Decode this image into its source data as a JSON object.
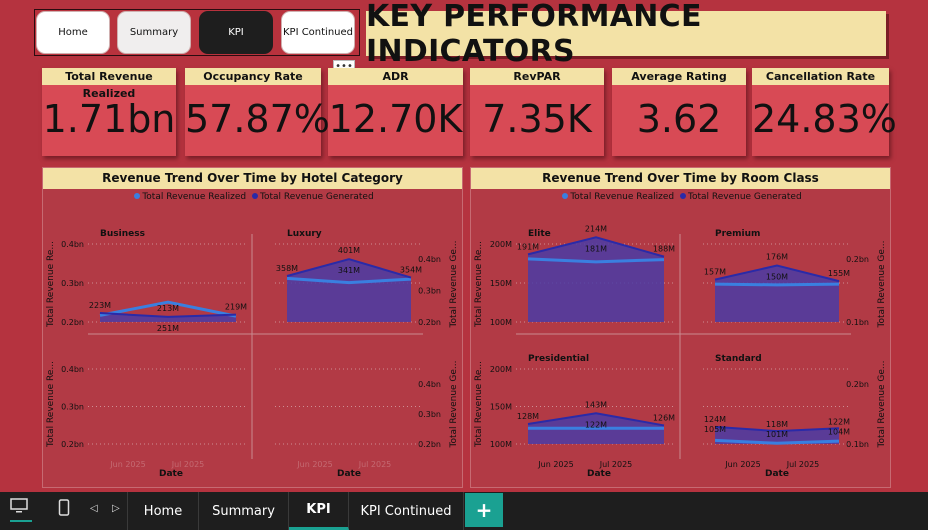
{
  "nav": {
    "buttons": [
      "Home",
      "Summary",
      "KPI",
      "KPI Continued"
    ]
  },
  "header": {
    "title": "KEY PERFORMANCE INDICATORS"
  },
  "kpis": [
    {
      "label": "Total Revenue Realized",
      "value": "1.71bn"
    },
    {
      "label": "Occupancy Rate",
      "value": "57.87%"
    },
    {
      "label": "ADR",
      "value": "12.70K"
    },
    {
      "label": "RevPAR",
      "value": "7.35K"
    },
    {
      "label": "Average Rating",
      "value": "3.62"
    },
    {
      "label": "Cancellation Rate",
      "value": "24.83%"
    }
  ],
  "colors": {
    "realized": "#3a7fe0",
    "generated": "#2a2aa8",
    "accent": "#1aa192",
    "label_bg": "#f3e2a6"
  },
  "chart_data": [
    {
      "type": "area",
      "title": "Revenue Trend Over Time by Hotel Category",
      "legend": [
        "Total Revenue Realized",
        "Total Revenue Generated"
      ],
      "xlabel": "Date",
      "ylabel_left": "Total Revenue Re...",
      "ylabel_right": "Total Revenue Ge...",
      "y_ticks": [
        "0.4bn",
        "0.3bn",
        "0.2bn"
      ],
      "facets": [
        {
          "name": "Business",
          "labels": [
            "223M",
            "213M",
            "251M",
            "219M"
          ]
        },
        {
          "name": "Luxury",
          "labels": [
            "358M",
            "401M",
            "341M",
            "354M"
          ]
        },
        {
          "name": "",
          "labels": []
        },
        {
          "name": "",
          "labels": []
        }
      ],
      "x_ticks": [
        "Jun 2025",
        "Jul 2025"
      ]
    },
    {
      "type": "area",
      "title": "Revenue Trend Over Time by Room Class",
      "legend": [
        "Total Revenue Realized",
        "Total Revenue Generated"
      ],
      "xlabel": "Date",
      "ylabel_left": "Total Revenue Re...",
      "ylabel_right": "Total Revenue Ge...",
      "facets": [
        {
          "name": "Elite",
          "y_ticks": [
            "200M",
            "150M",
            "100M"
          ],
          "r_ticks": [],
          "labels": [
            "191M",
            "214M",
            "181M",
            "188M"
          ]
        },
        {
          "name": "Premium",
          "y_ticks": [],
          "r_ticks": [
            "0.2bn",
            "0.1bn"
          ],
          "labels": [
            "157M",
            "176M",
            "150M",
            "155M"
          ]
        },
        {
          "name": "Presidential",
          "y_ticks": [
            "200M",
            "150M",
            "100M"
          ],
          "r_ticks": [],
          "labels": [
            "128M",
            "143M",
            "122M",
            "126M"
          ]
        },
        {
          "name": "Standard",
          "y_ticks": [],
          "r_ticks": [
            "0.2bn",
            "0.1bn"
          ],
          "labels": [
            "124M",
            "105M",
            "118M",
            "101M",
            "122M",
            "104M"
          ]
        }
      ],
      "x_ticks": [
        "Jun 2025",
        "Jul 2025"
      ]
    }
  ],
  "tabs": [
    "Home",
    "Summary",
    "KPI",
    "KPI Continued"
  ],
  "add_tab": "+"
}
